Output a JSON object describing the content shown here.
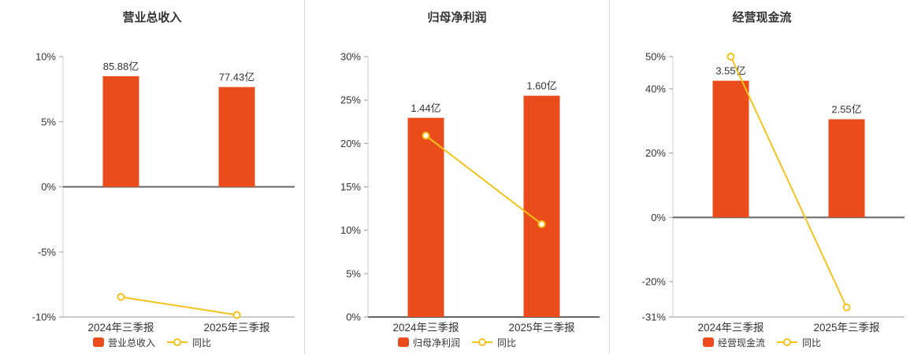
{
  "colors": {
    "bar": "#ea4c1b",
    "line": "#f3c31b",
    "axis": "#999999",
    "axis_light": "#cccccc",
    "zero_line": "#666666",
    "text": "#333333",
    "title": "#333333",
    "divider": "#e0e0e0",
    "background": "#ffffff"
  },
  "chart_data": [
    {
      "type": "bar",
      "title": "营业总收入",
      "categories": [
        "2024年三季报",
        "2025年三季报"
      ],
      "bar_series": {
        "name": "营业总收入",
        "unit": "亿",
        "values": [
          85.88,
          77.43
        ],
        "labels": [
          "85.88亿",
          "77.43亿"
        ]
      },
      "line_series": {
        "name": "同比",
        "unit": "%",
        "values": [
          -8.46,
          -9.84
        ]
      },
      "ylim": [
        -10,
        10
      ],
      "yticks": [
        10,
        5,
        0,
        -5,
        -10
      ],
      "ytick_labels": [
        "10%",
        "5%",
        "0%",
        "-5%",
        "-10%"
      ],
      "legend_position": "bottom",
      "grid": false
    },
    {
      "type": "bar",
      "title": "归母净利润",
      "categories": [
        "2024年三季报",
        "2025年三季报"
      ],
      "bar_series": {
        "name": "归母净利润",
        "unit": "亿",
        "values": [
          1.44,
          1.6
        ],
        "labels": [
          "1.44亿",
          "1.60亿"
        ]
      },
      "line_series": {
        "name": "同比",
        "unit": "%",
        "values": [
          20.9,
          10.7
        ]
      },
      "ylim": [
        0,
        30
      ],
      "yticks": [
        30,
        25,
        20,
        15,
        10,
        5,
        0
      ],
      "ytick_labels": [
        "30%",
        "25%",
        "20%",
        "15%",
        "10%",
        "5%",
        "0%"
      ],
      "legend_position": "bottom",
      "grid": false
    },
    {
      "type": "bar",
      "title": "经营现金流",
      "categories": [
        "2024年三季报",
        "2025年三季报"
      ],
      "bar_series": {
        "name": "经营现金流",
        "unit": "亿",
        "values": [
          3.55,
          2.55
        ],
        "labels": [
          "3.55亿",
          "2.55亿"
        ]
      },
      "line_series": {
        "name": "同比",
        "unit": "%",
        "values": [
          50.0,
          -28.0
        ]
      },
      "ylim": [
        -31,
        50
      ],
      "yticks": [
        50,
        40,
        20,
        0,
        -20,
        -31
      ],
      "ytick_labels": [
        "50%",
        "40%",
        "20%",
        "0%",
        "-20%",
        "-31%"
      ],
      "legend_position": "bottom",
      "grid": false
    }
  ]
}
